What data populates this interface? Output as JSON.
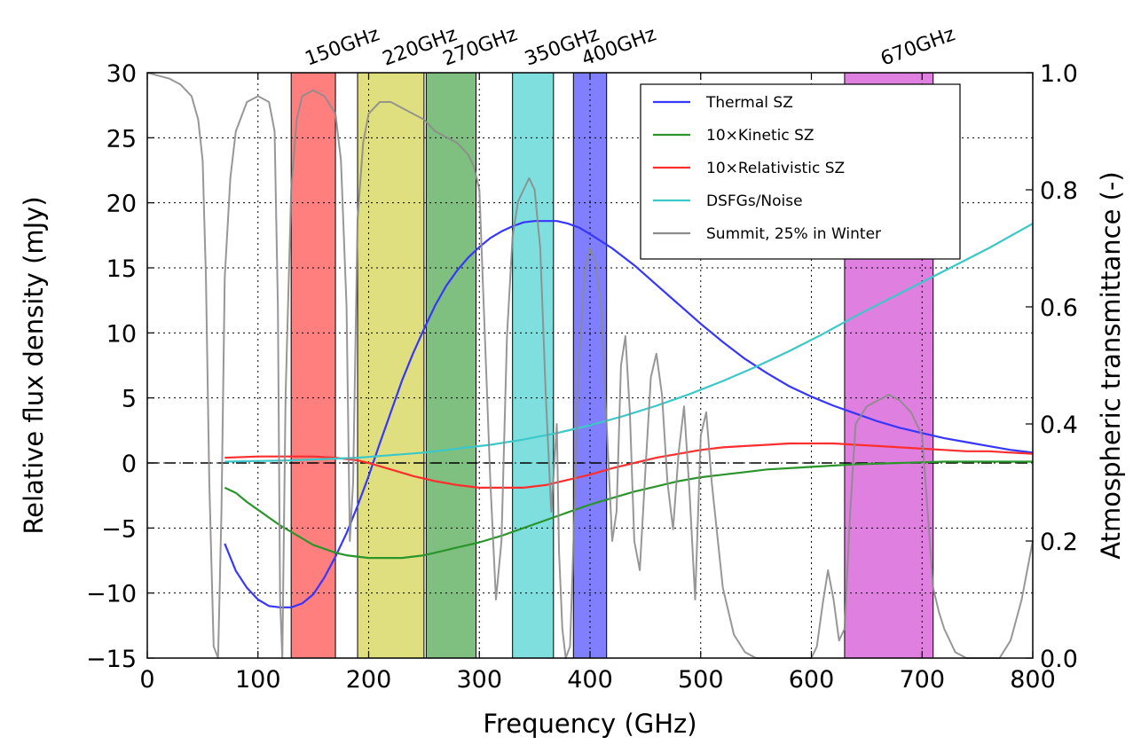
{
  "chart_data": {
    "type": "line",
    "xlabel": "Frequency (GHz)",
    "ylabel": "Relative flux density (mJy)",
    "y2label": "Atmospheric transmittance (-)",
    "xlim": [
      0,
      800
    ],
    "ylim": [
      -15,
      30
    ],
    "y2lim": [
      0.0,
      1.0
    ],
    "xticks": [
      0,
      100,
      200,
      300,
      400,
      500,
      600,
      700,
      800
    ],
    "yticks": [
      -15,
      -10,
      -5,
      0,
      5,
      10,
      15,
      20,
      25,
      30
    ],
    "y2ticks": [
      "0.0",
      "0.2",
      "0.4",
      "0.6",
      "0.8",
      "1.0"
    ],
    "xtick_labels": [
      "0",
      "100",
      "200",
      "300",
      "400",
      "500",
      "600",
      "700",
      "800"
    ],
    "ytick_labels": [
      "−15",
      "−10",
      "−5",
      "0",
      "5",
      "10",
      "15",
      "20",
      "25",
      "30"
    ],
    "grid": true,
    "legend_position": "top-right",
    "bands": [
      {
        "label": "150GHz",
        "lo": 130,
        "hi": 170,
        "color": "#ff0000"
      },
      {
        "label": "220GHz",
        "lo": 190,
        "hi": 250,
        "color": "#bfbf00"
      },
      {
        "label": "270GHz",
        "lo": 252,
        "hi": 297,
        "color": "#008000"
      },
      {
        "label": "350GHz",
        "lo": 330,
        "hi": 367,
        "color": "#00bfbf"
      },
      {
        "label": "400GHz",
        "lo": 385,
        "hi": 415,
        "color": "#0000ff"
      },
      {
        "label": "670GHz",
        "lo": 630,
        "hi": 710,
        "color": "#bf00bf"
      }
    ],
    "series": [
      {
        "name": "Thermal SZ",
        "color": "#3636ff",
        "x": [
          70,
          80,
          90,
          100,
          110,
          120,
          130,
          140,
          150,
          160,
          170,
          180,
          190,
          200,
          210,
          220,
          230,
          240,
          250,
          260,
          270,
          280,
          290,
          300,
          310,
          320,
          330,
          340,
          350,
          360,
          370,
          380,
          390,
          400,
          420,
          440,
          460,
          480,
          500,
          520,
          540,
          560,
          580,
          600,
          620,
          640,
          660,
          680,
          700,
          720,
          740,
          760,
          780,
          800
        ],
        "y": [
          -6.2,
          -8.3,
          -9.6,
          -10.5,
          -11.0,
          -11.1,
          -11.1,
          -10.8,
          -10.1,
          -8.8,
          -7.2,
          -5.4,
          -3.3,
          -1.0,
          1.5,
          3.9,
          6.3,
          8.4,
          10.3,
          12.1,
          13.6,
          14.8,
          15.8,
          16.6,
          17.3,
          17.8,
          18.2,
          18.5,
          18.6,
          18.6,
          18.6,
          18.4,
          18.1,
          17.6,
          16.5,
          15.2,
          13.7,
          12.2,
          10.7,
          9.3,
          8.0,
          6.9,
          5.9,
          5.1,
          4.4,
          3.8,
          3.2,
          2.7,
          2.3,
          1.9,
          1.6,
          1.3,
          1.0,
          0.8
        ]
      },
      {
        "name": "10×Kinetic SZ",
        "color": "#2a952a",
        "x": [
          70,
          80,
          90,
          100,
          110,
          120,
          130,
          140,
          150,
          160,
          170,
          180,
          190,
          200,
          210,
          220,
          230,
          240,
          250,
          260,
          270,
          280,
          290,
          300,
          320,
          340,
          360,
          380,
          400,
          420,
          440,
          460,
          480,
          500,
          520,
          540,
          560,
          580,
          600,
          640,
          680,
          720,
          760,
          800
        ],
        "y": [
          -1.9,
          -2.3,
          -3.0,
          -3.6,
          -4.2,
          -4.8,
          -5.3,
          -5.8,
          -6.3,
          -6.6,
          -6.9,
          -7.1,
          -7.2,
          -7.3,
          -7.3,
          -7.3,
          -7.3,
          -7.2,
          -7.1,
          -6.9,
          -6.7,
          -6.5,
          -6.3,
          -6.1,
          -5.6,
          -5.0,
          -4.4,
          -3.8,
          -3.2,
          -2.7,
          -2.2,
          -1.8,
          -1.4,
          -1.1,
          -0.9,
          -0.7,
          -0.5,
          -0.4,
          -0.3,
          -0.1,
          0.0,
          0.1,
          0.1,
          0.1
        ]
      },
      {
        "name": "10×Relativistic SZ",
        "color": "#ff2e2e",
        "x": [
          70,
          100,
          130,
          150,
          170,
          190,
          200,
          220,
          240,
          260,
          280,
          300,
          320,
          340,
          360,
          380,
          400,
          420,
          440,
          460,
          480,
          500,
          520,
          540,
          560,
          580,
          600,
          620,
          640,
          660,
          680,
          700,
          720,
          740,
          760,
          780,
          800
        ],
        "y": [
          0.4,
          0.5,
          0.5,
          0.5,
          0.4,
          0.2,
          0.0,
          -0.5,
          -1.0,
          -1.4,
          -1.7,
          -1.9,
          -1.9,
          -1.9,
          -1.7,
          -1.3,
          -0.9,
          -0.4,
          0.0,
          0.4,
          0.7,
          1.0,
          1.2,
          1.3,
          1.4,
          1.5,
          1.5,
          1.5,
          1.4,
          1.3,
          1.2,
          1.1,
          1.0,
          0.9,
          0.9,
          0.8,
          0.7
        ]
      },
      {
        "name": "DSFGs/Noise",
        "color": "#3cc8c8",
        "x": [
          70,
          100,
          130,
          160,
          190,
          220,
          250,
          280,
          310,
          340,
          370,
          400,
          430,
          460,
          490,
          520,
          550,
          580,
          610,
          640,
          670,
          700,
          730,
          760,
          800
        ],
        "y": [
          0.1,
          0.15,
          0.2,
          0.3,
          0.4,
          0.6,
          0.8,
          1.1,
          1.4,
          1.8,
          2.3,
          2.9,
          3.6,
          4.4,
          5.3,
          6.3,
          7.4,
          8.6,
          9.9,
          11.3,
          12.6,
          13.9,
          15.2,
          16.5,
          18.4
        ]
      },
      {
        "name": "Summit, 25% in Winter",
        "color": "#8c8c8c",
        "axis": "right",
        "x": [
          0,
          10,
          20,
          30,
          40,
          46,
          50,
          53,
          56,
          60,
          64,
          67,
          70,
          75,
          80,
          90,
          100,
          110,
          115,
          118,
          120,
          122,
          125,
          130,
          135,
          140,
          150,
          160,
          170,
          175,
          180,
          183,
          186,
          190,
          195,
          200,
          210,
          220,
          230,
          240,
          250,
          260,
          270,
          280,
          290,
          295,
          300,
          305,
          310,
          315,
          320,
          325,
          330,
          335,
          340,
          345,
          350,
          355,
          360,
          365,
          370,
          372,
          375,
          378,
          382,
          386,
          390,
          395,
          400,
          405,
          410,
          415,
          420,
          424,
          428,
          432,
          436,
          440,
          445,
          450,
          455,
          460,
          465,
          470,
          475,
          480,
          485,
          490,
          495,
          500,
          505,
          510,
          520,
          530,
          540,
          550,
          560,
          570,
          580,
          590,
          600,
          605,
          610,
          615,
          620,
          625,
          630,
          635,
          640,
          650,
          660,
          670,
          680,
          690,
          700,
          705,
          710,
          715,
          720,
          730,
          740,
          750,
          760,
          770,
          780,
          790,
          800
        ],
        "y": [
          1.0,
          0.995,
          0.99,
          0.98,
          0.96,
          0.92,
          0.85,
          0.65,
          0.3,
          0.02,
          0.0,
          0.25,
          0.65,
          0.82,
          0.9,
          0.95,
          0.96,
          0.95,
          0.9,
          0.6,
          0.1,
          0.0,
          0.45,
          0.8,
          0.92,
          0.96,
          0.97,
          0.96,
          0.93,
          0.85,
          0.6,
          0.2,
          0.3,
          0.75,
          0.88,
          0.93,
          0.95,
          0.95,
          0.94,
          0.93,
          0.92,
          0.9,
          0.89,
          0.88,
          0.86,
          0.84,
          0.8,
          0.55,
          0.3,
          0.1,
          0.2,
          0.55,
          0.72,
          0.78,
          0.8,
          0.82,
          0.8,
          0.7,
          0.45,
          0.25,
          0.4,
          0.18,
          0.05,
          0.0,
          0.02,
          0.25,
          0.5,
          0.66,
          0.7,
          0.68,
          0.6,
          0.4,
          0.2,
          0.25,
          0.5,
          0.55,
          0.42,
          0.2,
          0.15,
          0.32,
          0.48,
          0.52,
          0.45,
          0.3,
          0.22,
          0.35,
          0.43,
          0.28,
          0.1,
          0.38,
          0.42,
          0.3,
          0.12,
          0.04,
          0.01,
          0.0,
          0.0,
          0.0,
          0.0,
          0.0,
          0.0,
          0.02,
          0.09,
          0.15,
          0.1,
          0.03,
          0.05,
          0.25,
          0.4,
          0.43,
          0.44,
          0.45,
          0.44,
          0.42,
          0.38,
          0.25,
          0.12,
          0.08,
          0.05,
          0.01,
          0.0,
          0.0,
          0.0,
          0.0,
          0.03,
          0.1,
          0.2
        ]
      }
    ]
  }
}
